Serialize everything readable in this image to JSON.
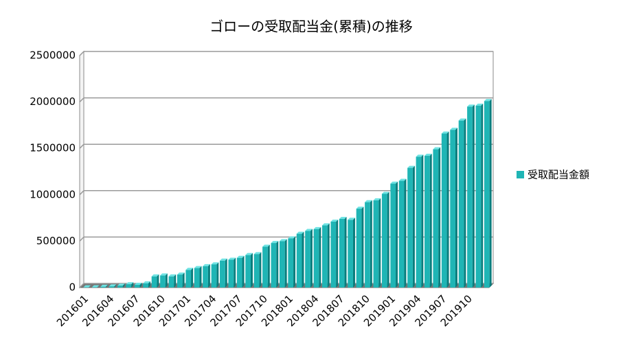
{
  "chart_data": {
    "type": "bar3d",
    "title": "ゴローの受取配当金(累積)の推移",
    "categories": [
      "201601",
      null,
      null,
      "201604",
      null,
      null,
      "201607",
      null,
      null,
      "201610",
      null,
      null,
      "201701",
      null,
      null,
      "201704",
      null,
      null,
      "201707",
      null,
      null,
      "201710",
      null,
      null,
      "201801",
      null,
      null,
      "201804",
      null,
      null,
      "201807",
      null,
      null,
      "201810",
      null,
      null,
      "201901",
      null,
      null,
      "201904",
      null,
      null,
      "201907",
      null,
      null,
      "201910",
      null,
      null
    ],
    "series": [
      {
        "name": "受取配当金額",
        "color": "#1fb5b5",
        "values": [
          2000,
          3000,
          8000,
          12000,
          20000,
          35000,
          30000,
          45000,
          120000,
          130000,
          120000,
          140000,
          190000,
          210000,
          230000,
          250000,
          290000,
          300000,
          320000,
          350000,
          360000,
          440000,
          480000,
          500000,
          530000,
          580000,
          610000,
          630000,
          670000,
          710000,
          740000,
          730000,
          850000,
          920000,
          940000,
          1010000,
          1120000,
          1150000,
          1290000,
          1410000,
          1420000,
          1490000,
          1660000,
          1700000,
          1800000,
          1950000,
          1960000,
          2010000
        ]
      }
    ],
    "ylim": [
      0,
      2500000
    ],
    "yticks": [
      0,
      500000,
      1000000,
      1500000,
      2000000,
      2500000
    ],
    "grid": true,
    "legend": "right"
  }
}
